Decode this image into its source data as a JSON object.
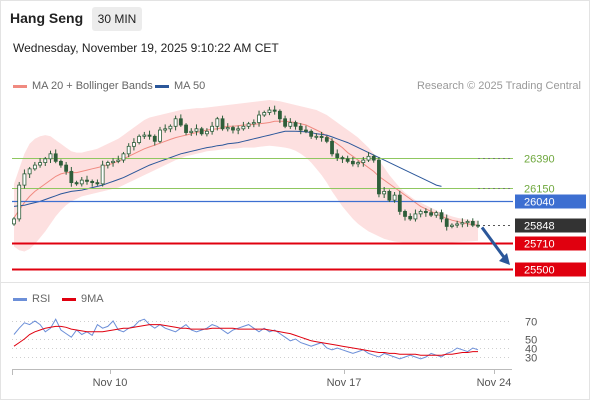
{
  "header": {
    "title": "Hang Seng",
    "timeframe": "30 MIN",
    "datetime": "Wednesday, November 19, 2025 9:10:22 AM CET"
  },
  "legend": {
    "ma20_label": "MA 20 + Bollinger Bands",
    "ma50_label": "MA 50",
    "credit": "Research © 2025 Trading Central",
    "rsi_label": "RSI",
    "ma9_label": "9MA"
  },
  "colors": {
    "ma20": "#f08a80",
    "ma50": "#2b579a",
    "bollinger_fill": "#fde0e0",
    "candle": "#2e5e3a",
    "resistance": "#8fc760",
    "pivot": "#3d6fd1",
    "support": "#e0000f",
    "price": "#333333",
    "rsi": "#6c8fd8",
    "rsi_ma": "#e0000f",
    "arrow": "#2b579a"
  },
  "chart_data": [
    {
      "type": "candlestick",
      "title": "Hang Seng",
      "x_ticks": [
        "Nov 10",
        "Nov 17",
        "Nov 24"
      ],
      "ylim": [
        25460,
        26850
      ],
      "levels": [
        {
          "value": 26390,
          "label": "26390",
          "kind": "resistance"
        },
        {
          "value": 26150,
          "label": "26150",
          "kind": "resistance"
        },
        {
          "value": 26040,
          "label": "26040",
          "kind": "pivot"
        },
        {
          "value": 25848,
          "label": "25848",
          "kind": "last_price"
        },
        {
          "value": 25710,
          "label": "25710",
          "kind": "support"
        },
        {
          "value": 25500,
          "label": "25500",
          "kind": "support"
        }
      ],
      "closes": [
        25900,
        26170,
        26260,
        26300,
        26330,
        26350,
        26380,
        26420,
        26360,
        26330,
        26280,
        26190,
        26180,
        26210,
        26200,
        26190,
        26180,
        26330,
        26350,
        26360,
        26370,
        26420,
        26480,
        26510,
        26560,
        26570,
        26560,
        26520,
        26610,
        26620,
        26640,
        26700,
        26650,
        26590,
        26600,
        26620,
        26580,
        26600,
        26640,
        26700,
        26620,
        26630,
        26610,
        26620,
        26640,
        26660,
        26670,
        26730,
        26750,
        26770,
        26760,
        26700,
        26640,
        26670,
        26640,
        26610,
        26600,
        26560,
        26560,
        26550,
        26520,
        26420,
        26390,
        26380,
        26360,
        26340,
        26350,
        26370,
        26400,
        26370,
        26100,
        26120,
        26050,
        26090,
        25960,
        25920,
        25900,
        25940,
        25960,
        25950,
        25930,
        25950,
        25900,
        25840,
        25850,
        25860,
        25870,
        25880,
        25850,
        25848
      ],
      "ma20": [
        25910,
        25970,
        26030,
        26080,
        26120,
        26150,
        26180,
        26210,
        26240,
        26260,
        26270,
        26270,
        26270,
        26280,
        26290,
        26300,
        26310,
        26320,
        26330,
        26345,
        26360,
        26380,
        26400,
        26420,
        26440,
        26460,
        26475,
        26490,
        26505,
        26520,
        26535,
        26550,
        26560,
        26570,
        26580,
        26590,
        26600,
        26610,
        26615,
        26620,
        26630,
        26640,
        26640,
        26645,
        26650,
        26650,
        26655,
        26660,
        26665,
        26670,
        26680,
        26680,
        26680,
        26675,
        26670,
        26660,
        26650,
        26630,
        26610,
        26590,
        26560,
        26530,
        26500,
        26470,
        26430,
        26400,
        26370,
        26340,
        26310,
        26280,
        26240,
        26210,
        26180,
        26150,
        26120,
        26090,
        26060,
        26030,
        26000,
        25980,
        25960,
        25940,
        25920,
        25905,
        25890,
        25880,
        25870,
        25860,
        25855,
        25850
      ],
      "ma50": [
        26000,
        26005,
        26010,
        26020,
        26030,
        26040,
        26055,
        26070,
        26085,
        26100,
        26110,
        26120,
        26125,
        26130,
        26140,
        26150,
        26160,
        26170,
        26185,
        26200,
        26215,
        26230,
        26250,
        26270,
        26290,
        26310,
        26330,
        26345,
        26360,
        26375,
        26390,
        26405,
        26420,
        26430,
        26440,
        26450,
        26460,
        26470,
        26475,
        26485,
        26490,
        26500,
        26505,
        26510,
        26520,
        26530,
        26540,
        26550,
        26560,
        26570,
        26580,
        26590,
        26600,
        26600,
        26600,
        26598,
        26595,
        26590,
        26580,
        26575,
        26570,
        26555,
        26540,
        26525,
        26510,
        26490,
        26470,
        26450,
        26430,
        26410,
        26390,
        26370,
        26350,
        26330,
        26310,
        26290,
        26270,
        26250,
        26230,
        26210,
        26190,
        26170,
        26160
      ],
      "bb_upper": [
        26180,
        26300,
        26420,
        26500,
        26540,
        26560,
        26570,
        26560,
        26530,
        26500,
        26470,
        26440,
        26430,
        26430,
        26440,
        26450,
        26460,
        26480,
        26500,
        26520,
        26540,
        26570,
        26600,
        26630,
        26660,
        26690,
        26710,
        26720,
        26730,
        26740,
        26750,
        26760,
        26770,
        26775,
        26780,
        26785,
        26785,
        26790,
        26795,
        26800,
        26805,
        26810,
        26815,
        26820,
        26825,
        26830,
        26835,
        26840,
        26845,
        26850,
        26845,
        26840,
        26830,
        26820,
        26810,
        26800,
        26790,
        26780,
        26770,
        26750,
        26730,
        26700,
        26670,
        26640,
        26610,
        26580,
        26550,
        26510,
        26470,
        26420,
        26370,
        26310,
        26250,
        26200,
        26150,
        26110,
        26080,
        26050,
        26030,
        26010,
        25990,
        25970,
        25950,
        25935,
        25920,
        25910,
        25900,
        25895,
        25890,
        25885
      ],
      "bb_lower": [
        25680,
        25650,
        25640,
        25660,
        25700,
        25750,
        25800,
        25860,
        25920,
        25970,
        26010,
        26040,
        26060,
        26080,
        26090,
        26100,
        26110,
        26120,
        26130,
        26140,
        26150,
        26170,
        26190,
        26210,
        26230,
        26250,
        26270,
        26290,
        26310,
        26330,
        26350,
        26370,
        26385,
        26400,
        26410,
        26420,
        26430,
        26440,
        26445,
        26450,
        26455,
        26460,
        26460,
        26465,
        26470,
        26470,
        26470,
        26475,
        26480,
        26485,
        26480,
        26475,
        26470,
        26460,
        26445,
        26420,
        26390,
        26350,
        26300,
        26250,
        26190,
        26120,
        26060,
        26000,
        25950,
        25900,
        25860,
        25830,
        25800,
        25780,
        25760,
        25740,
        25730,
        25720,
        25715,
        25710,
        25710,
        25708,
        25706,
        25705,
        25705,
        25705,
        25708,
        25710,
        25712,
        25715,
        25718,
        25720,
        25722,
        25725
      ]
    },
    {
      "type": "line",
      "title": "RSI",
      "ylim": [
        20,
        80
      ],
      "y_ticks": [
        70,
        50,
        40,
        30
      ],
      "x_ticks": [
        "Nov 10",
        "Nov 17",
        "Nov 24"
      ],
      "series": [
        {
          "name": "RSI",
          "values": [
            55,
            62,
            68,
            66,
            70,
            66,
            58,
            62,
            72,
            60,
            56,
            52,
            60,
            55,
            58,
            54,
            66,
            62,
            64,
            70,
            60,
            58,
            62,
            64,
            70,
            72,
            66,
            62,
            66,
            62,
            60,
            58,
            62,
            66,
            60,
            58,
            60,
            62,
            66,
            64,
            60,
            56,
            60,
            62,
            64,
            66,
            62,
            58,
            62,
            58,
            60,
            56,
            52,
            48,
            50,
            46,
            44,
            42,
            44,
            46,
            40,
            38,
            40,
            38,
            36,
            34,
            36,
            38,
            34,
            32,
            30,
            34,
            32,
            30,
            28,
            30,
            32,
            30,
            28,
            30,
            34,
            32,
            30,
            34,
            36,
            40,
            38,
            36,
            40,
            38
          ]
        },
        {
          "name": "9MA",
          "values": [
            42,
            46,
            50,
            55,
            58,
            60,
            62,
            63,
            64,
            64,
            63,
            61,
            60,
            59,
            58,
            58,
            58,
            58,
            59,
            60,
            61,
            62,
            62,
            63,
            64,
            65,
            66,
            66,
            66,
            65,
            64,
            63,
            62,
            62,
            61,
            61,
            61,
            61,
            62,
            62,
            62,
            62,
            62,
            61,
            61,
            61,
            61,
            61,
            61,
            60,
            59,
            58,
            57,
            56,
            54,
            52,
            50,
            48,
            47,
            46,
            45,
            44,
            43,
            42,
            41,
            40,
            39,
            38,
            37,
            36,
            35,
            35,
            34,
            34,
            33,
            33,
            33,
            33,
            32,
            32,
            32,
            32,
            32,
            33,
            33,
            34,
            35,
            35,
            36,
            36
          ]
        }
      ]
    }
  ]
}
